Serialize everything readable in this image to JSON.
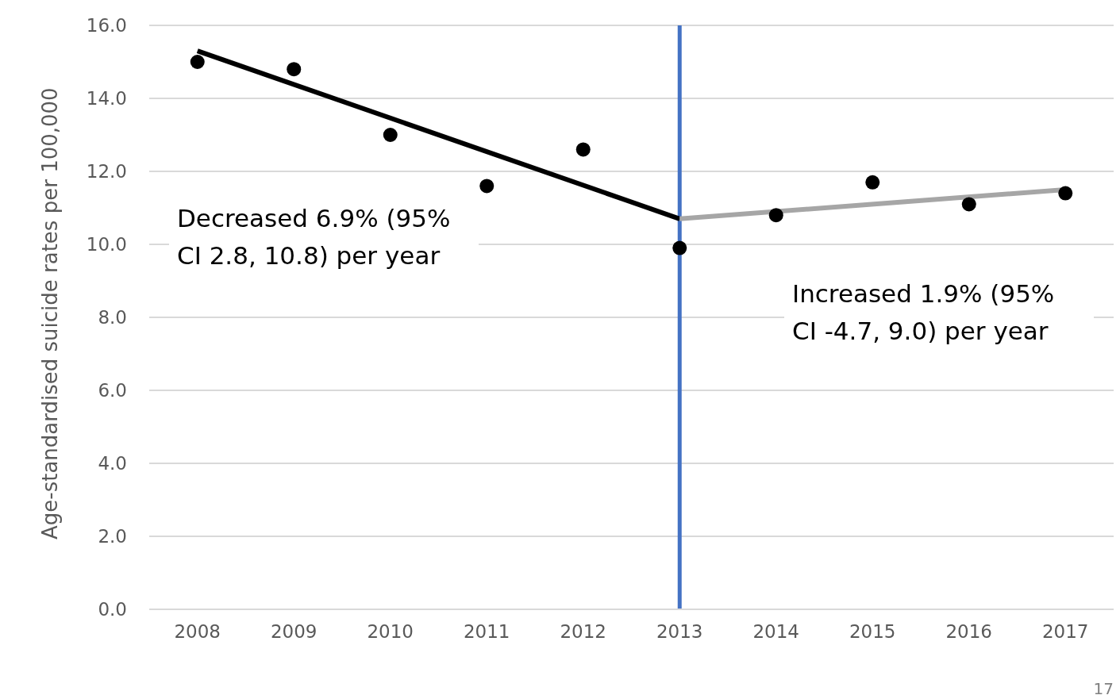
{
  "chart_data": {
    "type": "scatter",
    "ylabel": "Age-standardised suicide rates per 100,000",
    "x": [
      2008,
      2009,
      2010,
      2011,
      2012,
      2013,
      2014,
      2015,
      2016,
      2017
    ],
    "xlim": [
      2007.5,
      2017.5
    ],
    "xticks": [
      2008,
      2009,
      2010,
      2011,
      2012,
      2013,
      2014,
      2015,
      2016,
      2017
    ],
    "ylim": [
      0,
      16
    ],
    "yticks": [
      {
        "value": 0,
        "label": "0.0"
      },
      {
        "value": 2,
        "label": "2.0"
      },
      {
        "value": 4,
        "label": "4.0"
      },
      {
        "value": 6,
        "label": "6.0"
      },
      {
        "value": 8,
        "label": "8.0"
      },
      {
        "value": 10,
        "label": "10.0"
      },
      {
        "value": 12,
        "label": "12.0"
      },
      {
        "value": 14,
        "label": "14.0"
      },
      {
        "value": 16,
        "label": "16.0"
      }
    ],
    "series": [
      {
        "color": "#000000",
        "values": [
          15.0,
          14.8,
          13.0,
          11.6,
          12.6,
          9.9,
          10.8,
          11.7,
          11.1,
          11.4
        ]
      },
      {
        "type": "line",
        "marker": "none",
        "color": "#000000",
        "x": [
          2008,
          2013
        ],
        "values": [
          15.3,
          10.7
        ]
      },
      {
        "type": "line",
        "marker": "none",
        "color": "#a6a6a6",
        "x": [
          2013,
          2017
        ],
        "values": [
          10.7,
          11.5
        ]
      }
    ],
    "ref_lines": [
      {
        "axis": "x",
        "value": 2013,
        "color": "#4472c4"
      }
    ],
    "annotations": [
      "Decreased 6.9% (95% CI 2.8, 10.8) per year",
      "Increased 1.9% (95% CI -4.7, 9.0) per year",
      "17"
    ],
    "grid": "y",
    "marker": "circle",
    "line_style": "solid"
  }
}
